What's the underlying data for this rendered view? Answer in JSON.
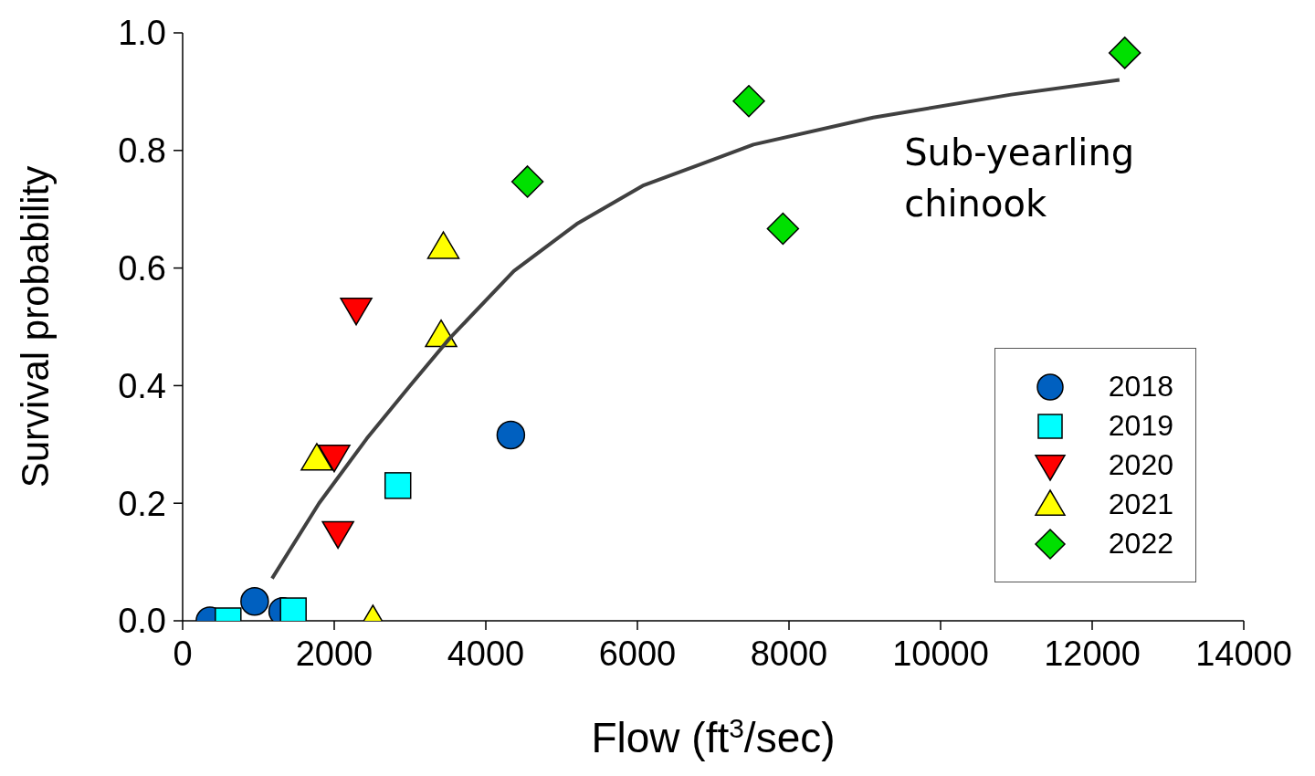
{
  "chart_data": {
    "type": "scatter",
    "xlabel": "Flow (ft$^{3}$/sec)",
    "ylabel": "Survival probability",
    "xlim": [
      0,
      14000
    ],
    "ylim": [
      0,
      1
    ],
    "xticks": [
      0,
      2000,
      4000,
      6000,
      8000,
      10000,
      12000,
      14000
    ],
    "yticks": [
      {
        "value": 0,
        "label": "0.0"
      },
      {
        "value": 0.2,
        "label": "0.2"
      },
      {
        "value": 0.4,
        "label": "0.4"
      },
      {
        "value": 0.6,
        "label": "0.6"
      },
      {
        "value": 0.8,
        "label": "0.8"
      },
      {
        "value": 1,
        "label": "1.0"
      }
    ],
    "legend": "bottom right",
    "annotations": [
      "Sub-yearling chinook"
    ],
    "series": [
      {
        "name": "2018",
        "color": "#0060c0",
        "marker": "circle",
        "x": [
          360,
          950,
          1320,
          4330
        ],
        "values": [
          0,
          0.033,
          0.016,
          0.316
        ]
      },
      {
        "name": "2019",
        "color": "#00ffff",
        "marker": "square",
        "x": [
          600,
          1460,
          2840
        ],
        "values": [
          0,
          0.017,
          0.23
        ]
      },
      {
        "name": "2020",
        "color": "#ff0000",
        "marker": "triangle-down",
        "x": [
          2290,
          2000,
          2050
        ],
        "values": [
          0.53,
          0.28,
          0.15
        ]
      },
      {
        "name": "2021",
        "color": "#ffff00",
        "marker": "triangle",
        "x": [
          1770,
          3410,
          3440,
          2510
        ],
        "values": [
          0.275,
          0.485,
          0.635,
          0
        ]
      },
      {
        "name": "2022",
        "color": "#00e000",
        "marker": "diamond",
        "x": [
          4550,
          7470,
          7920,
          12430
        ],
        "values": [
          0.747,
          0.884,
          0.667,
          0.966
        ]
      },
      {
        "type": "line",
        "color": "#404040",
        "marker": "none",
        "x": [
          1180,
          1800,
          2430,
          3000,
          3520,
          4370,
          5200,
          6070,
          7530,
          9110,
          10930,
          12360
        ],
        "values": [
          0.072,
          0.2,
          0.31,
          0.4,
          0.48,
          0.595,
          0.675,
          0.74,
          0.81,
          0.856,
          0.895,
          0.92
        ]
      }
    ]
  }
}
